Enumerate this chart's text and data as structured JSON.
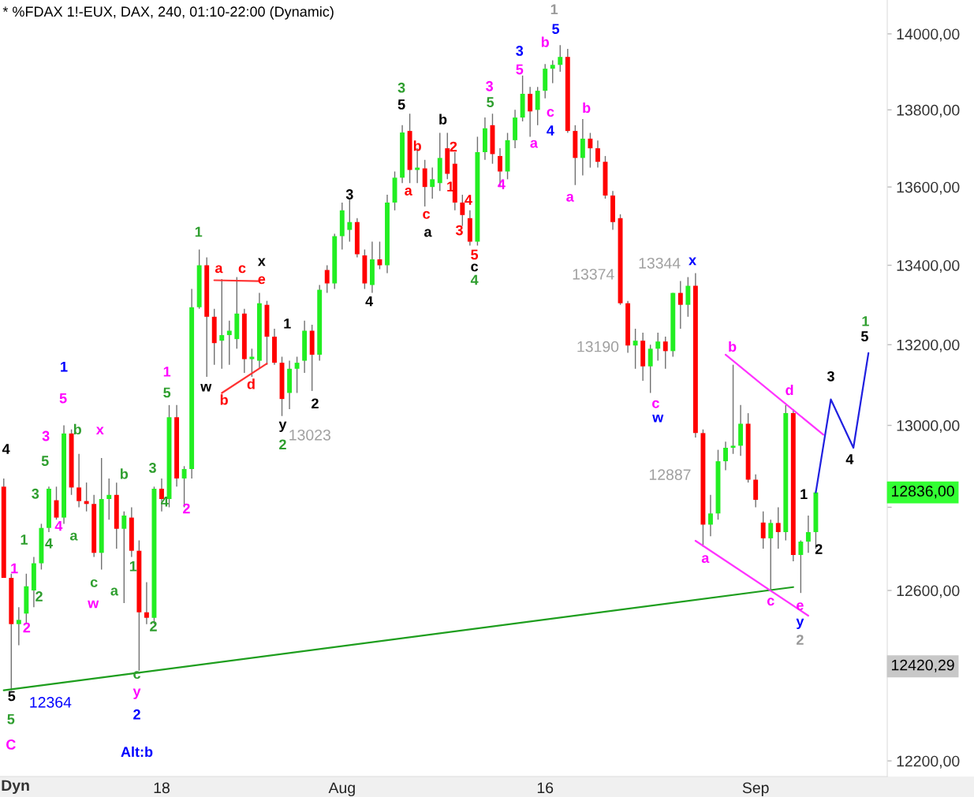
{
  "chart_data": {
    "type": "candlestick",
    "title": "* %FDAX 1!-EUX, DAX, 240, 01:10-22:00 (Dynamic)",
    "log": true,
    "grid": false,
    "categories": [
      null,
      null,
      null,
      null,
      null,
      null,
      null,
      null,
      null,
      null,
      null,
      null,
      null,
      null,
      null,
      null,
      null,
      null,
      null,
      null,
      null,
      "18",
      null,
      null,
      null,
      null,
      null,
      null,
      null,
      null,
      null,
      null,
      null,
      null,
      null,
      null,
      null,
      null,
      null,
      null,
      null,
      null,
      null,
      null,
      null,
      "Aug",
      null,
      null,
      null,
      null,
      null,
      null,
      null,
      null,
      null,
      null,
      null,
      null,
      null,
      null,
      null,
      null,
      null,
      null,
      null,
      null,
      null,
      null,
      null,
      null,
      null,
      null,
      "16",
      null,
      null,
      null,
      null,
      null,
      null,
      null,
      null,
      null,
      null,
      null,
      null,
      null,
      null,
      null,
      null,
      null,
      null,
      null,
      null,
      null,
      null,
      null,
      null,
      null,
      null,
      null,
      "Sep",
      null,
      null,
      null,
      null,
      null,
      null,
      null,
      null,
      null,
      null,
      null,
      null,
      null,
      null,
      null,
      null,
      null
    ],
    "ohlc": [
      [
        12850,
        12870,
        12630,
        12630
      ],
      [
        12630,
        12640,
        12364,
        12520
      ],
      [
        12520,
        12560,
        12470,
        12530
      ],
      [
        12545,
        12640,
        12520,
        12610
      ],
      [
        12600,
        12680,
        12560,
        12665
      ],
      [
        12665,
        12760,
        12650,
        12750
      ],
      [
        12750,
        12850,
        12740,
        12845
      ],
      [
        12817,
        12850,
        12770,
        12775
      ],
      [
        12775,
        13000,
        12760,
        12980
      ],
      [
        12980,
        12990,
        12830,
        12848
      ],
      [
        12848,
        12930,
        12800,
        12815
      ],
      [
        12815,
        12860,
        12790,
        12808
      ],
      [
        12808,
        12830,
        12680,
        12690
      ],
      [
        12690,
        12920,
        12650,
        12820
      ],
      [
        12820,
        12870,
        12770,
        12830
      ],
      [
        12830,
        12860,
        12700,
        12748
      ],
      [
        12748,
        12790,
        12570,
        12780
      ],
      [
        12775,
        12800,
        12680,
        12695
      ],
      [
        12695,
        12720,
        12410,
        12548
      ],
      [
        12548,
        12620,
        12520,
        12535
      ],
      [
        12535,
        12850,
        12520,
        12845
      ],
      [
        12845,
        12870,
        12790,
        12820
      ],
      [
        12820,
        13050,
        12800,
        13020
      ],
      [
        13020,
        13050,
        12850,
        12870
      ],
      [
        12870,
        12900,
        12800,
        12893
      ],
      [
        12893,
        13340,
        12870,
        13294
      ],
      [
        13294,
        13440,
        13290,
        13400
      ],
      [
        13400,
        13420,
        13120,
        13270
      ],
      [
        13270,
        13290,
        13150,
        13204
      ],
      [
        13210,
        13365,
        13140,
        13224
      ],
      [
        13224,
        13260,
        13150,
        13235
      ],
      [
        13214,
        13370,
        13190,
        13278
      ],
      [
        13278,
        13290,
        13130,
        13164
      ],
      [
        13164,
        13190,
        13120,
        13170
      ],
      [
        13160,
        13330,
        13140,
        13304
      ],
      [
        13300,
        13310,
        13150,
        13220
      ],
      [
        13220,
        13240,
        13150,
        13155
      ],
      [
        13155,
        13170,
        13023,
        13065
      ],
      [
        13080,
        13160,
        13040,
        13140
      ],
      [
        13140,
        13170,
        13080,
        13155
      ],
      [
        13160,
        13260,
        13130,
        13235
      ],
      [
        13235,
        13250,
        13085,
        13175
      ],
      [
        13175,
        13350,
        13160,
        13338
      ],
      [
        13388,
        13400,
        13330,
        13354
      ],
      [
        13354,
        13480,
        13340,
        13474
      ],
      [
        13474,
        13560,
        13440,
        13540
      ],
      [
        13490,
        13570,
        13460,
        13510
      ],
      [
        13510,
        13520,
        13420,
        13428
      ],
      [
        13425,
        13440,
        13340,
        13354
      ],
      [
        13350,
        13460,
        13330,
        13415
      ],
      [
        13415,
        13460,
        13390,
        13400
      ],
      [
        13400,
        13580,
        13380,
        13560
      ],
      [
        13560,
        13640,
        13540,
        13624
      ],
      [
        13624,
        13760,
        13610,
        13741
      ],
      [
        13745,
        13790,
        13610,
        13644
      ],
      [
        13644,
        13700,
        13610,
        13650
      ],
      [
        13648,
        13670,
        13550,
        13600
      ],
      [
        13600,
        13650,
        13570,
        13620
      ],
      [
        13610,
        13740,
        13590,
        13675
      ],
      [
        13700,
        13740,
        13620,
        13634
      ],
      [
        13660,
        13690,
        13540,
        13560
      ],
      [
        13560,
        13580,
        13500,
        13528
      ],
      [
        13520,
        13540,
        13450,
        13460
      ],
      [
        13460,
        13730,
        13450,
        13690
      ],
      [
        13690,
        13780,
        13670,
        13752
      ],
      [
        13760,
        13790,
        13660,
        13685
      ],
      [
        13680,
        13700,
        13600,
        13640
      ],
      [
        13640,
        13740,
        13620,
        13721
      ],
      [
        13721,
        13800,
        13700,
        13780
      ],
      [
        13780,
        13890,
        13770,
        13842
      ],
      [
        13842,
        13860,
        13730,
        13796
      ],
      [
        13800,
        13860,
        13760,
        13850
      ],
      [
        13850,
        13920,
        13830,
        13908
      ],
      [
        13908,
        13930,
        13870,
        13918
      ],
      [
        13918,
        13970,
        13900,
        13939
      ],
      [
        13939,
        13960,
        13740,
        13745
      ],
      [
        13745,
        13760,
        13605,
        13675
      ],
      [
        13675,
        13776,
        13630,
        13725
      ],
      [
        13725,
        13740,
        13650,
        13700
      ],
      [
        13700,
        13720,
        13650,
        13665
      ],
      [
        13665,
        13680,
        13570,
        13578
      ],
      [
        13578,
        13590,
        13490,
        13510
      ],
      [
        13520,
        13530,
        13300,
        13304
      ],
      [
        13304,
        13310,
        13180,
        13198
      ],
      [
        13198,
        13240,
        13140,
        13210
      ],
      [
        13210,
        13230,
        13110,
        13146
      ],
      [
        13146,
        13200,
        13080,
        13190
      ],
      [
        13190,
        13230,
        13160,
        13208
      ],
      [
        13208,
        13220,
        13140,
        13184
      ],
      [
        13184,
        13330,
        13170,
        13330
      ],
      [
        13330,
        13360,
        13240,
        13300
      ],
      [
        13300,
        13370,
        13270,
        13348
      ],
      [
        13348,
        13380,
        12970,
        12981
      ],
      [
        12981,
        12990,
        12705,
        12758
      ],
      [
        12758,
        12830,
        12730,
        12785
      ],
      [
        12785,
        12940,
        12770,
        12912
      ],
      [
        12912,
        12960,
        12890,
        12945
      ],
      [
        12945,
        13150,
        12930,
        12950
      ],
      [
        12950,
        13050,
        12925,
        13004
      ],
      [
        13004,
        13030,
        12860,
        12867
      ],
      [
        12867,
        12880,
        12800,
        12818
      ],
      [
        12763,
        12790,
        12700,
        12725
      ],
      [
        12725,
        12770,
        12602,
        12762
      ],
      [
        12762,
        12800,
        12700,
        12740
      ],
      [
        12740,
        13050,
        12720,
        13030
      ],
      [
        13030,
        13040,
        12670,
        12685
      ],
      [
        12685,
        12720,
        12594,
        12717
      ],
      [
        12717,
        12780,
        12690,
        12740
      ],
      [
        12740,
        12840,
        12700,
        12836
      ],
      null,
      null,
      null,
      null,
      null,
      null,
      null,
      null,
      null
    ],
    "series": [
      {
        "type": "line",
        "color": "#1e9e1e",
        "values": [
          12364,
          null,
          null,
          null,
          null,
          null,
          null,
          null,
          null,
          null,
          null,
          null,
          null,
          null,
          null,
          null,
          null,
          null,
          null,
          null,
          null,
          null,
          null,
          null,
          null,
          null,
          null,
          null,
          null,
          null,
          null,
          null,
          null,
          null,
          null,
          null,
          null,
          null,
          null,
          null,
          null,
          null,
          null,
          null,
          null,
          null,
          null,
          null,
          null,
          null,
          null,
          null,
          null,
          null,
          null,
          null,
          null,
          null,
          null,
          null,
          null,
          null,
          null,
          null,
          null,
          null,
          null,
          null,
          null,
          null,
          null,
          null,
          null,
          null,
          null,
          null,
          null,
          null,
          null,
          null,
          null,
          null,
          null,
          null,
          null,
          null,
          null,
          null,
          null,
          null,
          null,
          null,
          null,
          null,
          null,
          null,
          null,
          null,
          null,
          null,
          null,
          null,
          null,
          null,
          null,
          12608,
          null,
          null,
          null,
          null,
          null,
          null,
          null,
          null,
          null,
          null,
          null,
          null
        ]
      },
      {
        "type": "line",
        "color": "#2020e0",
        "values": [
          null,
          null,
          null,
          null,
          null,
          null,
          null,
          null,
          null,
          null,
          null,
          null,
          null,
          null,
          null,
          null,
          null,
          null,
          null,
          null,
          null,
          null,
          null,
          null,
          null,
          null,
          null,
          null,
          null,
          null,
          null,
          null,
          null,
          null,
          null,
          null,
          null,
          null,
          null,
          null,
          null,
          null,
          null,
          null,
          null,
          null,
          null,
          null,
          null,
          null,
          null,
          null,
          null,
          null,
          null,
          null,
          null,
          null,
          null,
          null,
          null,
          null,
          null,
          null,
          null,
          null,
          null,
          null,
          null,
          null,
          null,
          null,
          null,
          null,
          null,
          null,
          null,
          null,
          null,
          null,
          null,
          null,
          null,
          null,
          null,
          null,
          null,
          null,
          null,
          null,
          null,
          null,
          null,
          null,
          null,
          null,
          null,
          null,
          null,
          null,
          null,
          null,
          null,
          null,
          null,
          null,
          null,
          null,
          12836,
          null,
          13064,
          null,
          null,
          12945,
          null,
          13179,
          null,
          null
        ]
      },
      {
        "type": "line",
        "color": "#ff33ff",
        "values": [
          null,
          null,
          null,
          null,
          null,
          null,
          null,
          null,
          null,
          null,
          null,
          null,
          null,
          null,
          null,
          null,
          null,
          null,
          null,
          null,
          null,
          null,
          null,
          null,
          null,
          null,
          null,
          null,
          null,
          null,
          null,
          null,
          null,
          null,
          null,
          null,
          null,
          null,
          null,
          null,
          null,
          null,
          null,
          null,
          null,
          null,
          null,
          null,
          null,
          null,
          null,
          null,
          null,
          null,
          null,
          null,
          null,
          null,
          null,
          null,
          null,
          null,
          null,
          null,
          null,
          null,
          null,
          null,
          null,
          null,
          null,
          null,
          null,
          null,
          null,
          null,
          null,
          null,
          null,
          null,
          null,
          null,
          null,
          null,
          null,
          null,
          null,
          null,
          null,
          null,
          null,
          null,
          null,
          null,
          null,
          null,
          13175,
          null,
          null,
          null,
          null,
          null,
          null,
          null,
          null,
          null,
          null,
          null,
          null,
          12977,
          null,
          null,
          null,
          null,
          null,
          null,
          null,
          null
        ]
      },
      {
        "type": "line",
        "color": "#ff33ff",
        "values": [
          null,
          null,
          null,
          null,
          null,
          null,
          null,
          null,
          null,
          null,
          null,
          null,
          null,
          null,
          null,
          null,
          null,
          null,
          null,
          null,
          null,
          null,
          null,
          null,
          null,
          null,
          null,
          null,
          null,
          null,
          null,
          null,
          null,
          null,
          null,
          null,
          null,
          null,
          null,
          null,
          null,
          null,
          null,
          null,
          null,
          null,
          null,
          null,
          null,
          null,
          null,
          null,
          null,
          null,
          null,
          null,
          null,
          null,
          null,
          null,
          null,
          null,
          null,
          null,
          null,
          null,
          null,
          null,
          null,
          null,
          null,
          null,
          null,
          null,
          null,
          null,
          null,
          null,
          null,
          null,
          null,
          null,
          null,
          null,
          null,
          null,
          null,
          null,
          null,
          null,
          null,
          null,
          12719,
          null,
          null,
          null,
          null,
          null,
          null,
          null,
          null,
          null,
          null,
          null,
          null,
          null,
          null,
          12540,
          null,
          null,
          null,
          null,
          null,
          null,
          null,
          null,
          null,
          null
        ]
      },
      {
        "type": "line",
        "color": "#ff3333",
        "values": [
          null,
          null,
          null,
          null,
          null,
          null,
          null,
          null,
          null,
          null,
          null,
          null,
          null,
          null,
          null,
          null,
          null,
          null,
          null,
          null,
          null,
          null,
          null,
          null,
          null,
          null,
          null,
          null,
          13362,
          null,
          null,
          null,
          null,
          null,
          13360,
          null,
          null,
          null,
          null,
          null,
          null,
          null,
          null,
          null,
          null,
          null,
          null,
          null,
          null,
          null,
          null,
          null,
          null,
          null,
          null,
          null,
          null,
          null,
          null,
          null,
          null,
          null,
          null,
          null,
          null,
          null,
          null,
          null,
          null,
          null,
          null,
          null,
          null,
          null,
          null,
          null,
          null,
          null,
          null,
          null,
          null,
          null,
          null,
          null,
          null,
          null,
          null,
          null,
          null,
          null,
          null,
          null,
          null,
          null,
          null,
          null,
          null,
          null,
          null,
          null,
          null,
          null,
          null,
          null,
          null,
          null,
          null,
          null,
          null,
          null,
          null,
          null,
          null,
          null,
          null,
          null,
          null,
          null
        ]
      },
      {
        "type": "line",
        "color": "#ff3333",
        "values": [
          null,
          null,
          null,
          null,
          null,
          null,
          null,
          null,
          null,
          null,
          null,
          null,
          null,
          null,
          null,
          null,
          null,
          null,
          null,
          null,
          null,
          null,
          null,
          null,
          null,
          null,
          null,
          null,
          null,
          13080,
          null,
          null,
          null,
          null,
          null,
          13153,
          null,
          null,
          null,
          null,
          null,
          null,
          null,
          null,
          null,
          null,
          null,
          null,
          null,
          null,
          null,
          null,
          null,
          null,
          null,
          null,
          null,
          null,
          null,
          null,
          null,
          null,
          null,
          null,
          null,
          null,
          null,
          null,
          null,
          null,
          null,
          null,
          null,
          null,
          null,
          null,
          null,
          null,
          null,
          null,
          null,
          null,
          null,
          null,
          null,
          null,
          null,
          null,
          null,
          null,
          null,
          null,
          null,
          null,
          null,
          null,
          null,
          null,
          null,
          null,
          null,
          null,
          null,
          null,
          null,
          null,
          null,
          null,
          null,
          null,
          null,
          null,
          null,
          null,
          null,
          null,
          null,
          null
        ]
      }
    ],
    "ylim": [
      12164,
      14090
    ],
    "yticks": [
      {
        "value": 12200,
        "label": "12200,00"
      },
      {
        "value": 12400,
        "label": null
      },
      {
        "value": 12600,
        "label": "12600,00"
      },
      {
        "value": 12800,
        "label": null
      },
      {
        "value": 13000,
        "label": "13000,00"
      },
      {
        "value": 13200,
        "label": "13200,00"
      },
      {
        "value": 13400,
        "label": "13400,00"
      },
      {
        "value": 13600,
        "label": "13600,00"
      },
      {
        "value": 13800,
        "label": "13800,00"
      },
      {
        "value": 14000,
        "label": "14000,00"
      }
    ],
    "annotations": [
      "Dyn",
      "12836,00",
      "12420,29",
      "4",
      "5",
      "12364",
      "5",
      "C",
      "Alt:b",
      "1",
      "2",
      "1",
      "2",
      "3",
      "4",
      "5",
      "3",
      "4",
      "1",
      "5",
      "b",
      "x",
      "a",
      "c",
      "w",
      "b",
      "a",
      "3",
      "4",
      "1",
      "2",
      "c",
      "y",
      "2",
      "1",
      "5",
      "2",
      "1",
      "a",
      "c",
      "x",
      "e",
      "w",
      "b",
      "d",
      "1",
      "2",
      "y",
      "2",
      "13023",
      "3",
      "4",
      "3",
      "5",
      "b",
      "a",
      "b",
      "2",
      "c",
      "a",
      "1",
      "4",
      "3",
      "5",
      "c",
      "4",
      "3",
      "5",
      "4",
      "3",
      "5",
      "a",
      "1",
      "5",
      "b",
      "c",
      "4",
      "b",
      "a",
      "13374",
      "13344",
      "x",
      "13190",
      "c",
      "w",
      "12887",
      "b",
      "a",
      "d",
      "c",
      "e",
      "y",
      "2",
      "1",
      "2",
      {
        "text": "3",
        "y": 13064
      },
      "4",
      "1",
      "5"
    ]
  }
}
